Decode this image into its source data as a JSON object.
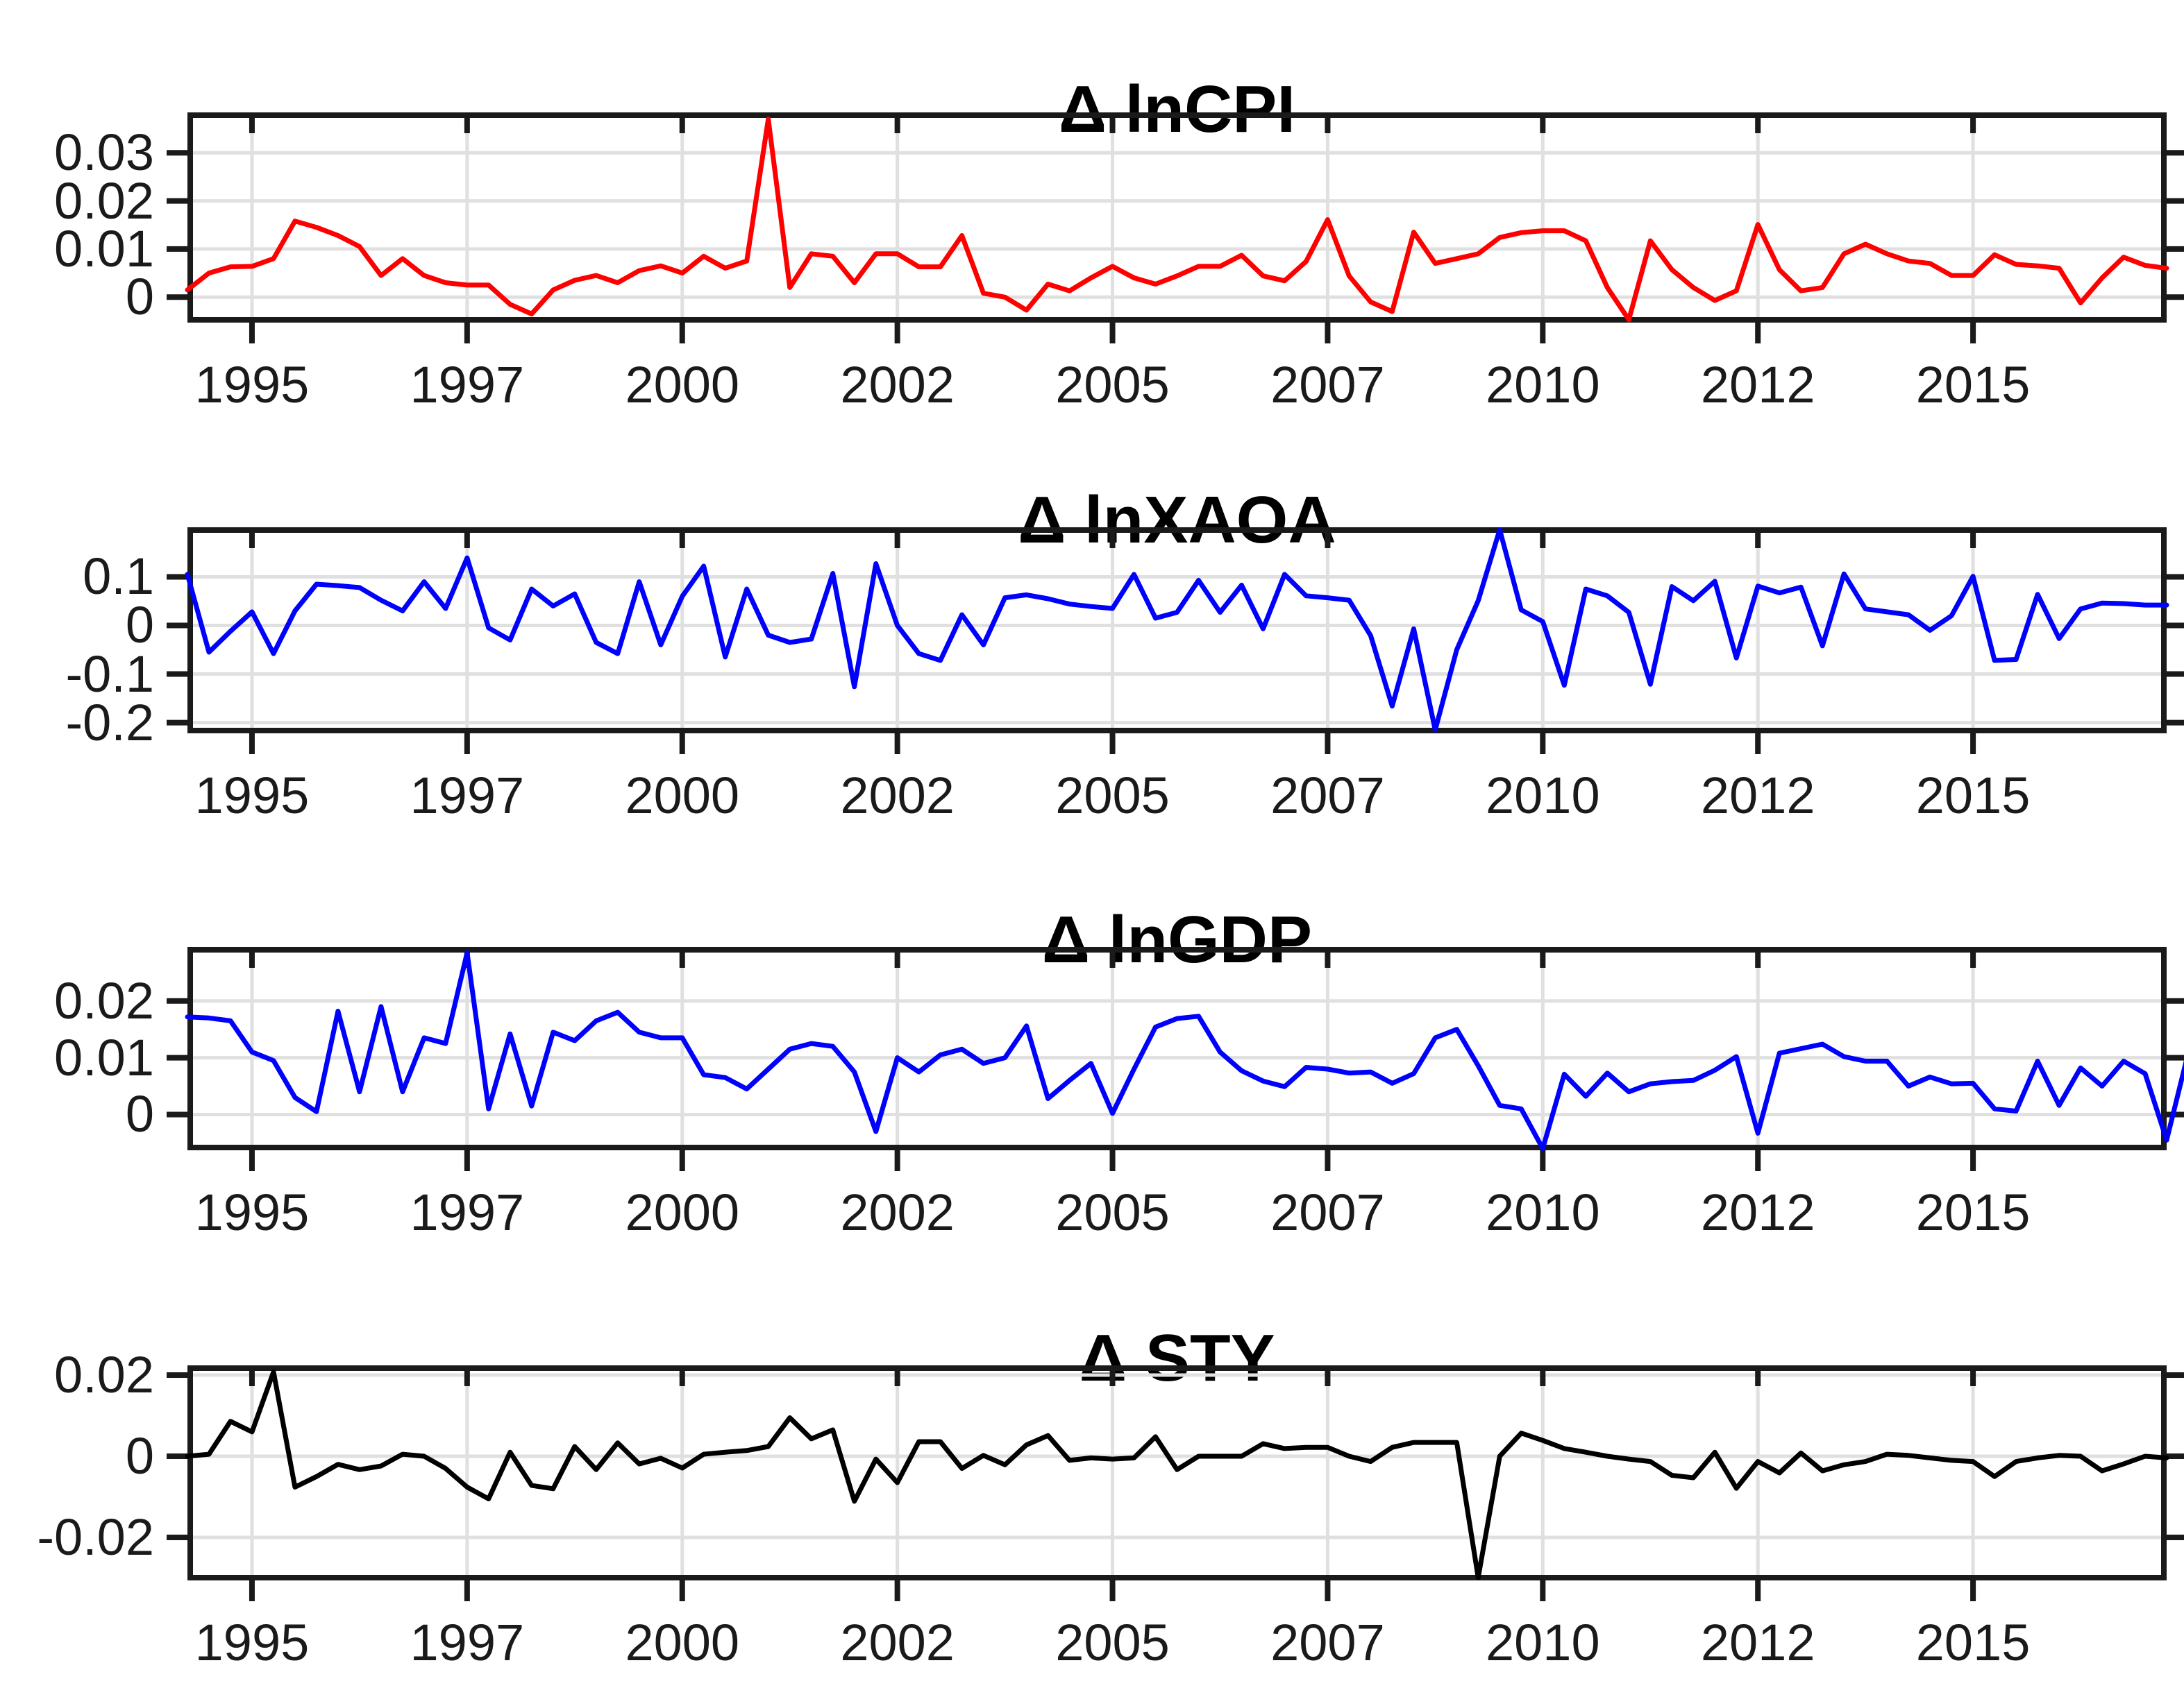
{
  "figure": {
    "background": "#ffffff"
  },
  "style": {
    "grid_color": "#e0e0e0",
    "axis_color": "#1a1a1a",
    "tick_label_color": "#1a1a1a",
    "title_color": "#000000"
  },
  "chart_data": [
    {
      "type": "line",
      "title": "Δ lnCPI",
      "series_name": "Delta lnCPI",
      "line_color": "#ff0000",
      "x_start": 1994.25,
      "x_step": 0.25,
      "xlim": [
        1994.25,
        2017.25
      ],
      "ylim": [
        -0.0053,
        0.0384
      ],
      "yticks": [
        0,
        0.01,
        0.02,
        0.03
      ],
      "xtick_positions": [
        1995,
        1997.5,
        2000,
        2002.5,
        2005,
        2007.5,
        2010,
        2012.5,
        2015
      ],
      "xtick_labels": [
        "1995",
        "1997",
        "2000",
        "2002",
        "2005",
        "2007",
        "2010",
        "2012",
        "2015"
      ],
      "grid": true,
      "values": [
        0.0015,
        0.005,
        0.0063,
        0.0064,
        0.008,
        0.0158,
        0.0145,
        0.0128,
        0.0105,
        0.0045,
        0.008,
        0.0045,
        0.003,
        0.0025,
        0.0025,
        -0.0015,
        -0.0035,
        0.0015,
        0.0035,
        0.0045,
        0.003,
        0.0055,
        0.0065,
        0.005,
        0.0085,
        0.006,
        0.0075,
        0.037,
        0.002,
        0.009,
        0.0085,
        0.003,
        0.009,
        0.009,
        0.0063,
        0.0063,
        0.0128,
        0.0008,
        0.0,
        -0.0027,
        0.0027,
        0.0013,
        0.004,
        0.0064,
        0.004,
        0.0027,
        0.0044,
        0.0064,
        0.0064,
        0.0087,
        0.0044,
        0.0034,
        0.0074,
        0.0161,
        0.0044,
        -0.001,
        -0.003,
        0.0135,
        0.007,
        0.008,
        0.009,
        0.0124,
        0.0134,
        0.0138,
        0.0138,
        0.0117,
        0.002,
        -0.0047,
        0.0117,
        0.0057,
        0.002,
        -0.0007,
        0.0013,
        0.0151,
        0.0057,
        0.0013,
        0.002,
        0.009,
        0.011,
        0.009,
        0.0075,
        0.007,
        0.0045,
        0.0045,
        0.0088,
        0.0068,
        0.0065,
        0.006,
        -0.0012,
        0.004,
        0.0083,
        0.0066,
        0.006
      ]
    },
    {
      "type": "line",
      "title": "Δ lnXAOA",
      "series_name": "Delta lnXAOA",
      "line_color": "#0000ff",
      "x_start": 1994.25,
      "x_step": 0.25,
      "xlim": [
        1994.25,
        2017.25
      ],
      "ylim": [
        -0.222,
        0.202
      ],
      "yticks": [
        -0.2,
        -0.1,
        0,
        0.1
      ],
      "xtick_positions": [
        1995,
        1997.5,
        2000,
        2002.5,
        2005,
        2007.5,
        2010,
        2012.5,
        2015
      ],
      "xtick_labels": [
        "1995",
        "1997",
        "2000",
        "2002",
        "2005",
        "2007",
        "2010",
        "2012",
        "2015"
      ],
      "grid": true,
      "values": [
        0.105,
        -0.055,
        -0.012,
        0.028,
        -0.058,
        0.03,
        0.085,
        0.082,
        0.078,
        0.052,
        0.03,
        0.09,
        0.035,
        0.139,
        -0.005,
        -0.03,
        0.075,
        0.04,
        0.065,
        -0.035,
        -0.058,
        0.09,
        -0.04,
        0.06,
        0.122,
        -0.065,
        0.075,
        -0.02,
        -0.035,
        -0.028,
        0.107,
        -0.126,
        0.127,
        0.0,
        -0.058,
        -0.072,
        0.022,
        -0.04,
        0.057,
        0.063,
        0.055,
        0.044,
        0.039,
        0.035,
        0.105,
        0.015,
        0.027,
        0.093,
        0.027,
        0.083,
        -0.007,
        0.105,
        0.061,
        0.057,
        0.052,
        -0.021,
        -0.166,
        -0.007,
        -0.215,
        -0.05,
        0.051,
        0.197,
        0.032,
        0.008,
        -0.123,
        0.075,
        0.061,
        0.027,
        -0.121,
        0.08,
        0.051,
        0.091,
        -0.067,
        0.081,
        0.067,
        0.079,
        -0.042,
        0.106,
        0.034,
        0.028,
        0.022,
        -0.01,
        0.02,
        0.101,
        -0.072,
        -0.07,
        0.064,
        -0.027,
        0.034,
        0.046,
        0.045,
        0.042,
        0.042
      ]
    },
    {
      "type": "line",
      "title": "Δ lnGDP",
      "series_name": "Delta lnGDP",
      "line_color": "#0000ff",
      "x_start": 1994.25,
      "x_step": 0.25,
      "xlim": [
        1994.25,
        2017.25
      ],
      "ylim": [
        -0.0063,
        0.0295
      ],
      "yticks": [
        0,
        0.01,
        0.02
      ],
      "xtick_positions": [
        1995,
        1997.5,
        2000,
        2002.5,
        2005,
        2007.5,
        2010,
        2012.5,
        2015
      ],
      "xtick_labels": [
        "1995",
        "1997",
        "2000",
        "2002",
        "2005",
        "2007",
        "2010",
        "2012",
        "2015"
      ],
      "grid": true,
      "values": [
        0.0172,
        0.017,
        0.0165,
        0.011,
        0.0095,
        0.003,
        0.0005,
        0.0182,
        0.004,
        0.019,
        0.004,
        0.0135,
        0.0125,
        0.0285,
        0.001,
        0.0142,
        0.0015,
        0.0145,
        0.013,
        0.0165,
        0.018,
        0.0145,
        0.0135,
        0.0135,
        0.007,
        0.0065,
        0.0045,
        0.008,
        0.0115,
        0.0125,
        0.012,
        0.0075,
        -0.003,
        0.01,
        0.0075,
        0.0105,
        0.0115,
        0.009,
        0.01,
        0.0156,
        0.0028,
        0.006,
        0.009,
        0.0002,
        0.008,
        0.0154,
        0.0169,
        0.0173,
        0.011,
        0.0077,
        0.0059,
        0.0049,
        0.0083,
        0.008,
        0.0073,
        0.0075,
        0.0055,
        0.0072,
        0.0135,
        0.015,
        0.0086,
        0.0016,
        0.001,
        -0.006,
        0.0071,
        0.0032,
        0.0073,
        0.004,
        0.0054,
        0.0058,
        0.006,
        0.0078,
        0.0102,
        -0.0033,
        0.0108,
        0.0116,
        0.0124,
        0.0102,
        0.0094,
        0.0094,
        0.005,
        0.0066,
        0.0054,
        0.0055,
        0.001,
        0.0006,
        0.0094,
        0.0016,
        0.0082,
        0.005,
        0.0094,
        0.0072,
        -0.0045,
        0.0108
      ]
    },
    {
      "type": "line",
      "title": "Δ STY",
      "series_name": "Delta STY",
      "line_color": "#000000",
      "x_start": 1994.25,
      "x_step": 0.25,
      "xlim": [
        1994.25,
        2017.25
      ],
      "ylim": [
        -0.0306,
        0.0224
      ],
      "yticks": [
        -0.02,
        0,
        0.02
      ],
      "xtick_positions": [
        1995,
        1997.5,
        2000,
        2002.5,
        2005,
        2007.5,
        2010,
        2012.5,
        2015
      ],
      "xtick_labels": [
        "1995",
        "1997",
        "2000",
        "2002",
        "2005",
        "2007",
        "2010",
        "2012",
        "2015"
      ],
      "grid": true,
      "values": [
        0.0,
        0.0005,
        0.0086,
        0.006,
        0.0208,
        -0.0076,
        -0.005,
        -0.002,
        -0.0033,
        -0.0024,
        0.0005,
        0.0,
        -0.003,
        -0.0076,
        -0.0105,
        0.001,
        -0.0072,
        -0.008,
        0.0024,
        -0.0033,
        0.0033,
        -0.0019,
        -0.0005,
        -0.0029,
        0.0005,
        0.001,
        0.0014,
        0.0024,
        0.0095,
        0.0043,
        0.0065,
        -0.0111,
        -0.0007,
        -0.0065,
        0.0036,
        0.0036,
        -0.003,
        0.0002,
        -0.0021,
        0.0028,
        0.0051,
        -0.001,
        -0.0004,
        -0.0007,
        -0.0004,
        0.0048,
        -0.0033,
        0.0,
        0.0,
        0.0,
        0.0031,
        0.0019,
        0.0022,
        0.0022,
        0.0,
        -0.0013,
        0.0022,
        0.0034,
        0.0034,
        0.0034,
        -0.0299,
        0.0,
        0.0057,
        0.0039,
        0.0019,
        0.001,
        0.0,
        -0.0007,
        -0.0013,
        -0.0047,
        -0.0053,
        0.001,
        -0.0079,
        -0.0013,
        -0.0041,
        0.0008,
        -0.0036,
        -0.0021,
        -0.0013,
        0.0005,
        0.0002,
        -0.0004,
        -0.001,
        -0.0013,
        -0.005,
        -0.0013,
        -0.0004,
        0.0002,
        0.0,
        -0.0036,
        -0.0019,
        0.0,
        -0.0004
      ]
    }
  ]
}
